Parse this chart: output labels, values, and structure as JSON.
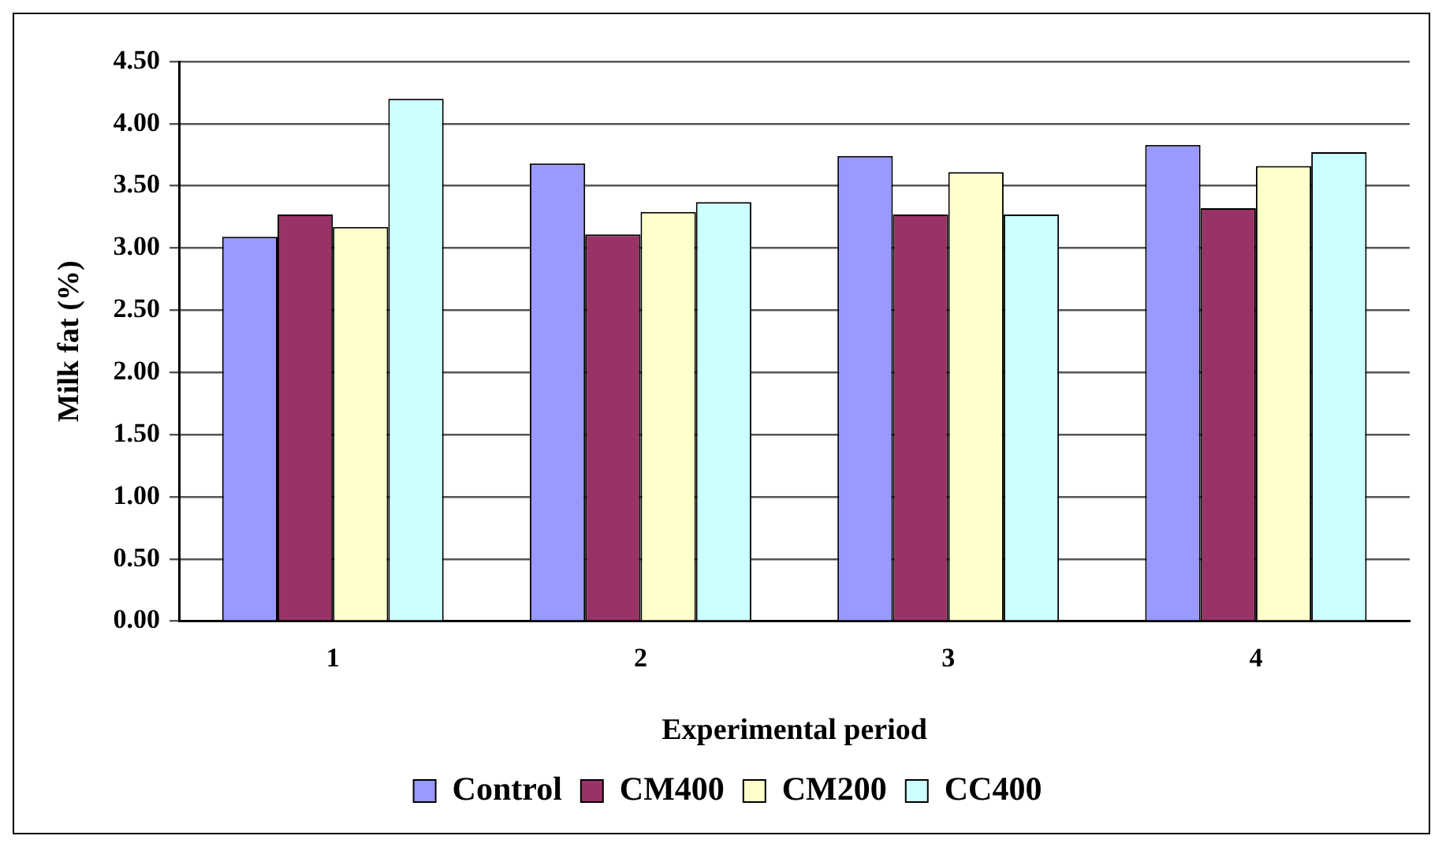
{
  "chart_data": {
    "type": "bar",
    "xlabel": "Experimental period",
    "ylabel": "Milk fat (%)",
    "categories": [
      "1",
      "2",
      "3",
      "4"
    ],
    "series": [
      {
        "name": "Control",
        "color": "#9999ff",
        "values": [
          3.09,
          3.68,
          3.74,
          3.83
        ]
      },
      {
        "name": "CM400",
        "color": "#993366",
        "values": [
          3.27,
          3.11,
          3.27,
          3.32
        ]
      },
      {
        "name": "CM200",
        "color": "#ffffcc",
        "values": [
          3.17,
          3.29,
          3.61,
          3.66
        ]
      },
      {
        "name": "CC400",
        "color": "#ccffff",
        "values": [
          4.2,
          3.37,
          3.27,
          3.77
        ]
      }
    ],
    "ylim": [
      0,
      4.5
    ],
    "yticks": [
      {
        "value": 0,
        "label": "0.00"
      },
      {
        "value": 0.5,
        "label": "0.50"
      },
      {
        "value": 1,
        "label": "1.00"
      },
      {
        "value": 1.5,
        "label": "1.50"
      },
      {
        "value": 2,
        "label": "2.00"
      },
      {
        "value": 2.5,
        "label": "2.50"
      },
      {
        "value": 3,
        "label": "3.00"
      },
      {
        "value": 3.5,
        "label": "3.50"
      },
      {
        "value": 4,
        "label": "4.00"
      },
      {
        "value": 4.5,
        "label": "4.50"
      }
    ],
    "grid": "y",
    "legend": "bottom"
  }
}
